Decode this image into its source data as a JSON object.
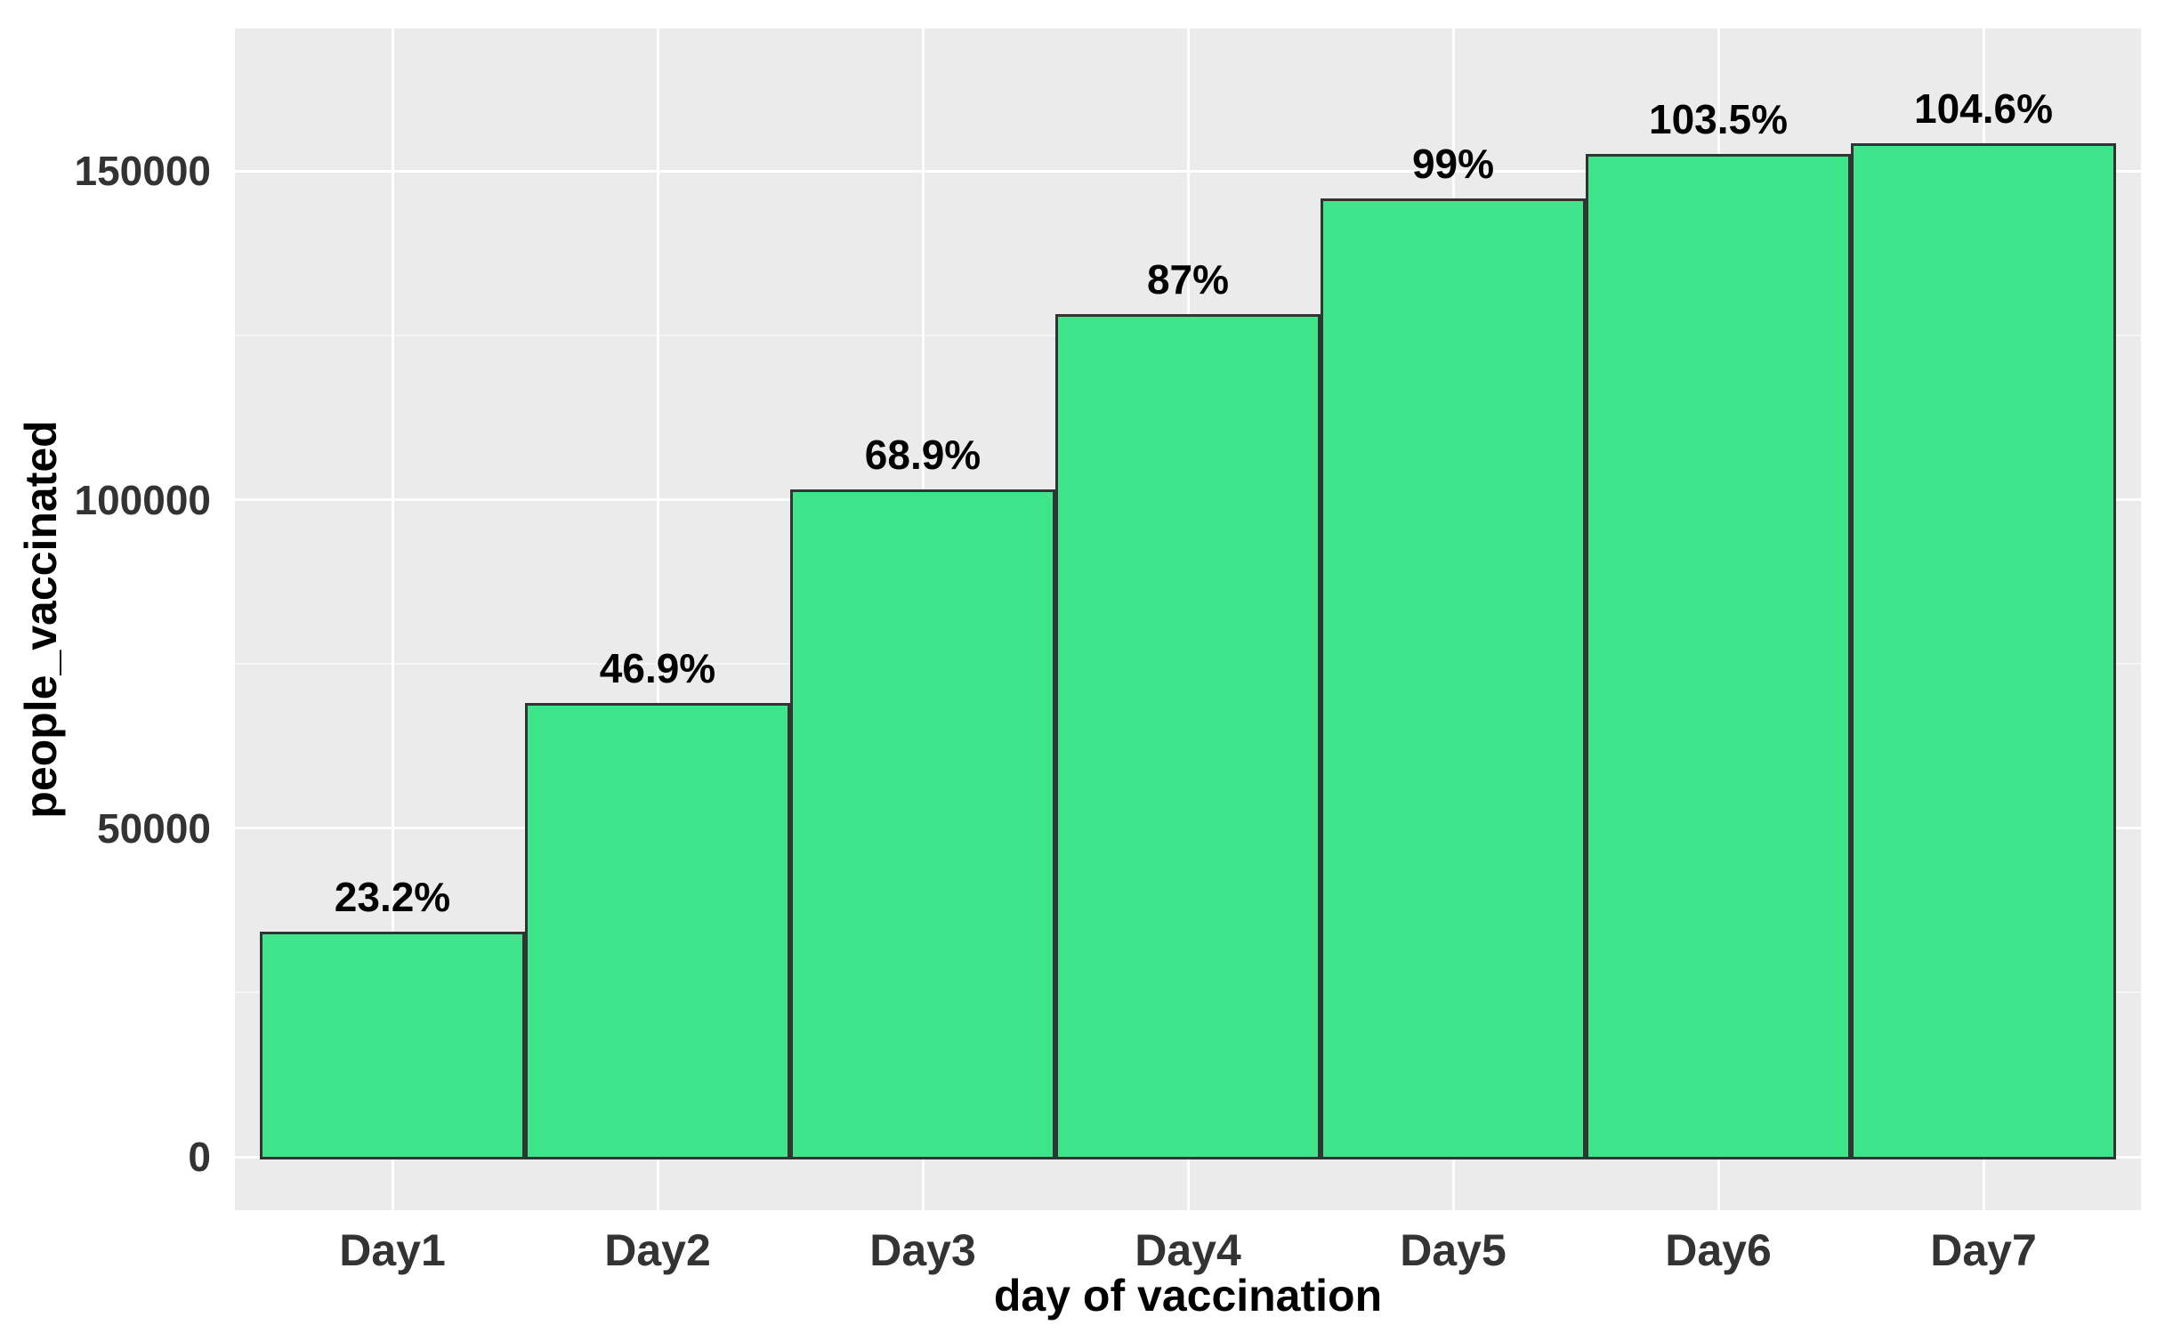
{
  "chart_data": {
    "type": "bar",
    "title": "",
    "xlabel": "day of vaccination",
    "ylabel": "people_vaccinated",
    "categories": [
      "Day1",
      "Day2",
      "Day3",
      "Day4",
      "Day5",
      "Day6",
      "Day7"
    ],
    "values": [
      34200,
      69100,
      101600,
      128200,
      145900,
      152600,
      154200
    ],
    "bar_labels": [
      "23.2%",
      "46.9%",
      "68.9%",
      "87%",
      "99%",
      "103.5%",
      "104.6%"
    ],
    "yticks": [
      {
        "value": 0,
        "label": "0"
      },
      {
        "value": 50000,
        "label": "50000"
      },
      {
        "value": 100000,
        "label": "100000"
      },
      {
        "value": 150000,
        "label": "150000"
      }
    ],
    "minor_yticks": [
      25000,
      75000,
      125000
    ],
    "ylim": [
      -8120,
      171700
    ],
    "grid": "major-and-minor, white on gray panel",
    "legend": false,
    "colors": {
      "bar_fill": "#3ee58a",
      "bar_border": "#333333",
      "panel_background": "#ebebeb",
      "gridline": "#ffffff",
      "tick_text": "#333333",
      "label_text": "#000000"
    }
  }
}
